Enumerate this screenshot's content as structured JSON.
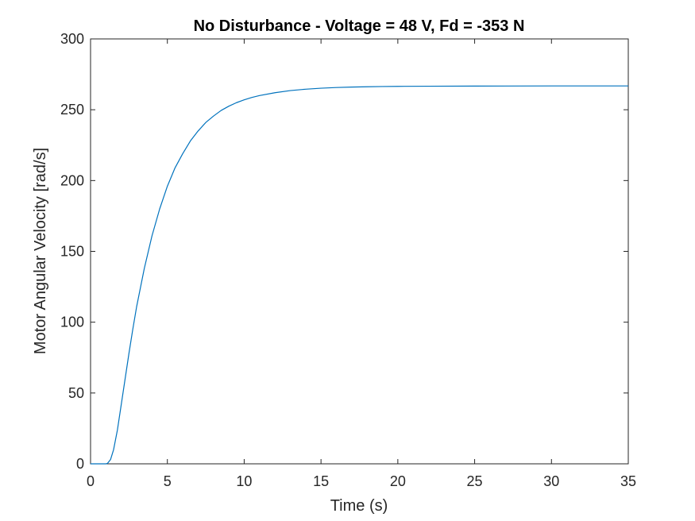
{
  "chart_data": {
    "type": "line",
    "title": "No Disturbance - Voltage = 48 V, Fd = -353 N",
    "xlabel": "Time (s)",
    "ylabel": "Motor Angular Velocity [rad/s]",
    "xlim": [
      0,
      35
    ],
    "ylim": [
      0,
      300
    ],
    "xticks": [
      0,
      5,
      10,
      15,
      20,
      25,
      30,
      35
    ],
    "xtick_labels": [
      "0",
      "5",
      "10",
      "15",
      "20",
      "25",
      "30",
      "35"
    ],
    "yticks": [
      0,
      50,
      100,
      150,
      200,
      250,
      300
    ],
    "ytick_labels": [
      "0",
      "50",
      "100",
      "150",
      "200",
      "250",
      "300"
    ],
    "grid": false,
    "series": [
      {
        "color": "#0072BD",
        "x": [
          0,
          0.5,
          1.0,
          1.1,
          1.3,
          1.5,
          1.75,
          2.0,
          2.25,
          2.5,
          2.75,
          3.0,
          3.5,
          4.0,
          4.5,
          5.0,
          5.5,
          6.0,
          6.5,
          7.0,
          7.5,
          8.0,
          8.5,
          9.0,
          9.5,
          10.0,
          10.5,
          11.0,
          12.0,
          13.0,
          14.0,
          15.0,
          16.0,
          17.0,
          18.0,
          19.0,
          20.0,
          22.0,
          25.0,
          30.0,
          35.0
        ],
        "y": [
          0,
          0,
          0,
          0.3,
          3,
          10,
          24,
          42,
          60,
          78,
          95,
          111,
          138,
          161,
          180,
          196,
          209,
          219,
          228,
          235,
          241,
          245.5,
          249.5,
          252.5,
          255,
          257,
          258.7,
          260,
          262,
          263.5,
          264.5,
          265.2,
          265.7,
          266.0,
          266.2,
          266.4,
          266.5,
          266.6,
          266.7,
          266.8,
          266.8
        ]
      }
    ]
  }
}
